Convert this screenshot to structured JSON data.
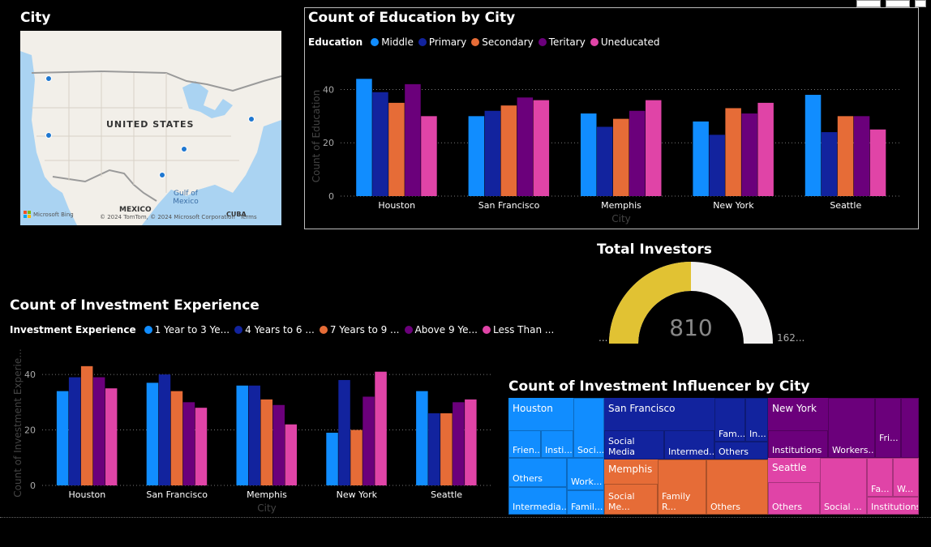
{
  "toolbar": {
    "buttons": [
      "",
      "",
      ""
    ]
  },
  "map": {
    "title": "City",
    "country_label": "UNITED STATES",
    "mexico_label": "MEXICO",
    "gulf_label": "Gulf of\nMexico",
    "cuba_label": "CUBA",
    "bing_label": "Microsoft Bing",
    "copyright": "© 2024 TomTom, © 2024 Microsoft Corporation",
    "terms": "Terms",
    "markers": [
      "Seattle",
      "San Francisco",
      "New York",
      "Memphis",
      "Houston"
    ]
  },
  "colors": {
    "Middle": "#118DFF",
    "Primary": "#12239E",
    "Secondary": "#E66C37",
    "Teritary": "#6B007B",
    "Uneducated": "#E044A7",
    "gauge_fill": "#E1C233",
    "gauge_rest": "#F3F2F1"
  },
  "edu_chart": {
    "title": "Count of Education by City",
    "legend_title": "Education",
    "series_names": [
      "Middle",
      "Primary",
      "Secondary",
      "Teritary",
      "Uneducated"
    ],
    "xlabel": "City",
    "ylabel": "Count of Education",
    "yticks": [
      "0",
      "20",
      "40"
    ]
  },
  "gauge": {
    "title": "Total Investors",
    "value": "810",
    "min_label": "...",
    "max_label": "162...",
    "fraction": 0.5
  },
  "inv_chart": {
    "title": "Count of Investment Experience",
    "legend_title": "Investment Experience",
    "series_names": [
      "1 Year to 3 Ye...",
      "4 Years to 6 ...",
      "7 Years to 9 ...",
      "Above 9 Ye...",
      "Less Than ..."
    ],
    "xlabel": "City",
    "ylabel": "Count of Investment Experie...",
    "yticks": [
      "0",
      "20",
      "40"
    ]
  },
  "treemap": {
    "title": "Count of Investment Influencer by City",
    "groups": [
      {
        "name": "Houston",
        "color": "#118DFF",
        "labels": [
          "Frien...",
          "Insti...",
          "Soci...",
          "Others",
          "Work...",
          "Intermedia...",
          "Famil..."
        ]
      },
      {
        "name": "San Francisco",
        "color": "#12239E",
        "labels": [
          "Social Media",
          "Intermed...",
          "Fam...",
          "In...",
          "Others"
        ]
      },
      {
        "name": "Memphis",
        "color": "#E66C37",
        "labels": [
          "Social Me...",
          "Family R...",
          "Others"
        ]
      },
      {
        "name": "New York",
        "color": "#6B007B",
        "labels": [
          "Institutions",
          "Workers...",
          "Fri..."
        ]
      },
      {
        "name": "Seattle",
        "color": "#E044A7",
        "labels": [
          "Others",
          "Social ...",
          "Fa...",
          "W...",
          "Institutions"
        ]
      }
    ]
  },
  "chart_data": [
    {
      "type": "bar",
      "title": "Count of Education by City",
      "xlabel": "City",
      "ylabel": "Count of Education",
      "categories": [
        "Houston",
        "San Francisco",
        "Memphis",
        "New York",
        "Seattle"
      ],
      "ylim": [
        0,
        45
      ],
      "grid": true,
      "legend": "top-left",
      "series": [
        {
          "name": "Middle",
          "values": [
            44,
            30,
            31,
            28,
            38
          ]
        },
        {
          "name": "Primary",
          "values": [
            39,
            32,
            26,
            23,
            24
          ]
        },
        {
          "name": "Secondary",
          "values": [
            35,
            34,
            29,
            33,
            30
          ]
        },
        {
          "name": "Teritary",
          "values": [
            42,
            37,
            32,
            31,
            30
          ]
        },
        {
          "name": "Uneducated",
          "values": [
            30,
            36,
            36,
            35,
            25
          ]
        }
      ]
    },
    {
      "type": "bar",
      "title": "Count of Investment Experience",
      "xlabel": "City",
      "ylabel": "Count of Investment Experie...",
      "categories": [
        "Houston",
        "San Francisco",
        "Memphis",
        "New York",
        "Seattle"
      ],
      "ylim": [
        0,
        45
      ],
      "grid": true,
      "legend": "top-left",
      "series": [
        {
          "name": "1 Year to 3 Ye...",
          "values": [
            34,
            37,
            36,
            19,
            34
          ]
        },
        {
          "name": "4 Years to 6 ...",
          "values": [
            39,
            40,
            36,
            38,
            26
          ]
        },
        {
          "name": "7 Years to 9 ...",
          "values": [
            43,
            34,
            31,
            20,
            26
          ]
        },
        {
          "name": "Above 9 Ye...",
          "values": [
            39,
            30,
            29,
            32,
            30
          ]
        },
        {
          "name": "Less Than ...",
          "values": [
            35,
            28,
            22,
            41,
            31
          ]
        }
      ]
    }
  ]
}
